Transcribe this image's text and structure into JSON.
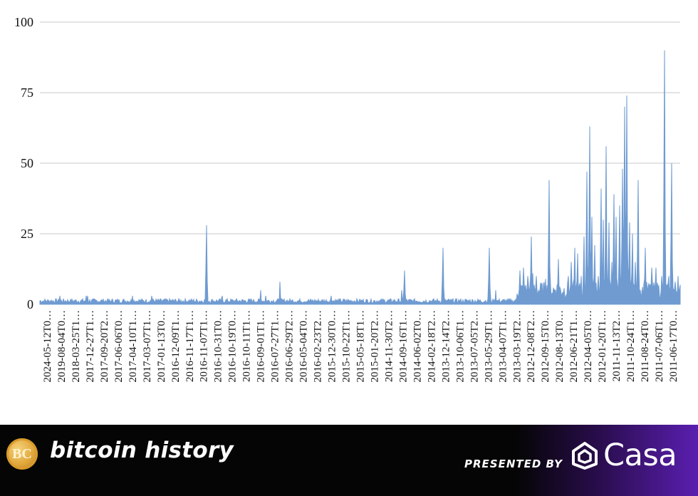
{
  "chart_data": {
    "type": "area",
    "color": "#6f9bd1",
    "ylim": [
      0,
      100
    ],
    "yticks": [
      0,
      25,
      50,
      75,
      100
    ],
    "grid": true,
    "x_tick_labels": [
      "2024-05-12T0…",
      "2019-08-04T0…",
      "2018-03-25T1…",
      "2017-12-27T1…",
      "2017-09-20T2…",
      "2017-06-06T0…",
      "2017-04-10T1…",
      "2017-03-07T1…",
      "2017-01-13T0…",
      "2016-12-09T1…",
      "2016-11-17T1…",
      "2016-11-07T1…",
      "2016-10-31T0…",
      "2016-10-19T0…",
      "2016-10-11T1…",
      "2016-09-01T1…",
      "2016-07-27T1…",
      "2016-06-29T2…",
      "2016-05-04T0…",
      "2016-02-23T2…",
      "2015-12-30T0…",
      "2015-10-22T1…",
      "2015-05-18T1…",
      "2015-01-20T2…",
      "2014-11-30T2…",
      "2014-09-16T1…",
      "2014-06-02T0…",
      "2014-02-18T2…",
      "2013-12-14T2…",
      "2013-10-06T1…",
      "2013-07-05T2…",
      "2013-05-29T1…",
      "2013-04-07T1…",
      "2013-03-19T2…",
      "2012-12-08T2…",
      "2012-09-15T0…",
      "2012-08-13T0…",
      "2012-06-21T1…",
      "2012-04-05T0…",
      "2012-01-20T1…",
      "2011-11-13T2…",
      "2011-10-24T1…",
      "2011-08-24T0…",
      "2011-07-06T1…",
      "2011-06-17T0…"
    ],
    "peaks": [
      {
        "pos": 0.031,
        "value": 3
      },
      {
        "pos": 0.072,
        "value": 3
      },
      {
        "pos": 0.075,
        "value": 3
      },
      {
        "pos": 0.145,
        "value": 3
      },
      {
        "pos": 0.175,
        "value": 3
      },
      {
        "pos": 0.26,
        "value": 28
      },
      {
        "pos": 0.285,
        "value": 3
      },
      {
        "pos": 0.345,
        "value": 5
      },
      {
        "pos": 0.353,
        "value": 3
      },
      {
        "pos": 0.375,
        "value": 8
      },
      {
        "pos": 0.455,
        "value": 3
      },
      {
        "pos": 0.565,
        "value": 5
      },
      {
        "pos": 0.569,
        "value": 12
      },
      {
        "pos": 0.63,
        "value": 20
      },
      {
        "pos": 0.702,
        "value": 20
      },
      {
        "pos": 0.712,
        "value": 5
      },
      {
        "pos": 0.75,
        "value": 12
      },
      {
        "pos": 0.755,
        "value": 13
      },
      {
        "pos": 0.762,
        "value": 10
      },
      {
        "pos": 0.767,
        "value": 24
      },
      {
        "pos": 0.77,
        "value": 11
      },
      {
        "pos": 0.775,
        "value": 10
      },
      {
        "pos": 0.79,
        "value": 9
      },
      {
        "pos": 0.795,
        "value": 44
      },
      {
        "pos": 0.805,
        "value": 5
      },
      {
        "pos": 0.81,
        "value": 16
      },
      {
        "pos": 0.825,
        "value": 10
      },
      {
        "pos": 0.83,
        "value": 15
      },
      {
        "pos": 0.835,
        "value": 20
      },
      {
        "pos": 0.84,
        "value": 18
      },
      {
        "pos": 0.845,
        "value": 10
      },
      {
        "pos": 0.85,
        "value": 24
      },
      {
        "pos": 0.854,
        "value": 47
      },
      {
        "pos": 0.859,
        "value": 63
      },
      {
        "pos": 0.862,
        "value": 31
      },
      {
        "pos": 0.867,
        "value": 21
      },
      {
        "pos": 0.872,
        "value": 10
      },
      {
        "pos": 0.876,
        "value": 41
      },
      {
        "pos": 0.88,
        "value": 30
      },
      {
        "pos": 0.884,
        "value": 56
      },
      {
        "pos": 0.889,
        "value": 29
      },
      {
        "pos": 0.893,
        "value": 15
      },
      {
        "pos": 0.897,
        "value": 39
      },
      {
        "pos": 0.9,
        "value": 31
      },
      {
        "pos": 0.906,
        "value": 35
      },
      {
        "pos": 0.91,
        "value": 48
      },
      {
        "pos": 0.913,
        "value": 70
      },
      {
        "pos": 0.917,
        "value": 74
      },
      {
        "pos": 0.921,
        "value": 29
      },
      {
        "pos": 0.925,
        "value": 25
      },
      {
        "pos": 0.93,
        "value": 15
      },
      {
        "pos": 0.934,
        "value": 44
      },
      {
        "pos": 0.94,
        "value": 4
      },
      {
        "pos": 0.946,
        "value": 20
      },
      {
        "pos": 0.952,
        "value": 6
      },
      {
        "pos": 0.956,
        "value": 13
      },
      {
        "pos": 0.962,
        "value": 13
      },
      {
        "pos": 0.966,
        "value": 6
      },
      {
        "pos": 0.971,
        "value": 10
      },
      {
        "pos": 0.975,
        "value": 90
      },
      {
        "pos": 0.982,
        "value": 10
      },
      {
        "pos": 0.987,
        "value": 50
      },
      {
        "pos": 0.992,
        "value": 8
      },
      {
        "pos": 0.997,
        "value": 10
      }
    ]
  },
  "footer": {
    "logo_text": "BC",
    "brand": "bitcoin history",
    "presented_by": "PRESENTED BY",
    "sponsor": "Casa"
  }
}
